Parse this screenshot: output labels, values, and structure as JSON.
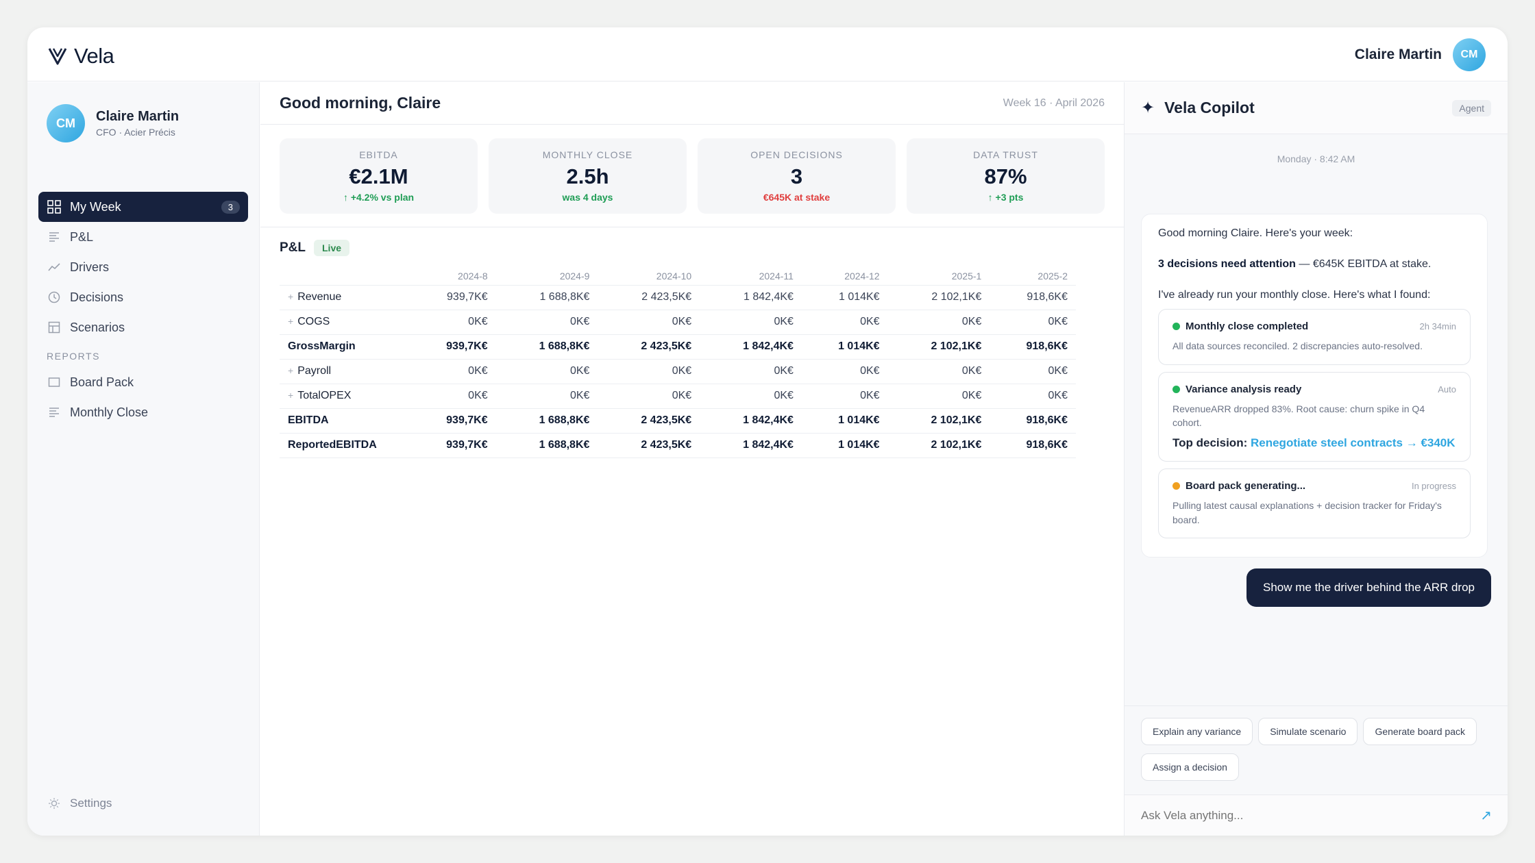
{
  "app": {
    "brand": "Vela",
    "user_name": "Claire Martin",
    "user_initials": "CM"
  },
  "sidebar": {
    "user_name": "Claire Martin",
    "user_role": "CFO · Acier Précis",
    "initials": "CM",
    "nav": [
      {
        "label": "My Week",
        "badge": "3",
        "icon": "grid-icon",
        "active": true
      },
      {
        "label": "P&L",
        "icon": "list-icon"
      },
      {
        "label": "Drivers",
        "icon": "trend-icon"
      },
      {
        "label": "Decisions",
        "icon": "clock-icon"
      },
      {
        "label": "Scenarios",
        "icon": "table-icon"
      }
    ],
    "reports_label": "REPORTS",
    "reports": [
      {
        "label": "Board Pack",
        "icon": "square-icon"
      },
      {
        "label": "Monthly Close",
        "icon": "list-icon"
      }
    ],
    "settings": "Settings"
  },
  "main": {
    "greeting": "Good morning, Claire",
    "week": "Week 16 · April 2026",
    "kpis": [
      {
        "label": "EBITDA",
        "value": "€2.1M",
        "sub": "↑ +4.2% vs plan",
        "tone": "green"
      },
      {
        "label": "MONTHLY CLOSE",
        "value": "2.5h",
        "sub": "was 4 days",
        "tone": "green"
      },
      {
        "label": "OPEN DECISIONS",
        "value": "3",
        "sub": "€645K at stake",
        "tone": "red"
      },
      {
        "label": "DATA TRUST",
        "value": "87%",
        "sub": "↑ +3 pts",
        "tone": "green"
      }
    ],
    "pl": {
      "title": "P&L",
      "live": "Live",
      "columns": [
        "2024-8",
        "2024-9",
        "2024-10",
        "2024-11",
        "2024-12",
        "2025-1",
        "2025-2"
      ],
      "rows": [
        {
          "label": "Revenue",
          "expand": true,
          "bold": false,
          "values": [
            "939,7K€",
            "1 688,8K€",
            "2 423,5K€",
            "1 842,4K€",
            "1 014K€",
            "2 102,1K€",
            "918,6K€"
          ]
        },
        {
          "label": "COGS",
          "expand": true,
          "bold": false,
          "values": [
            "0K€",
            "0K€",
            "0K€",
            "0K€",
            "0K€",
            "0K€",
            "0K€"
          ]
        },
        {
          "label": "GrossMargin",
          "expand": false,
          "bold": true,
          "values": [
            "939,7K€",
            "1 688,8K€",
            "2 423,5K€",
            "1 842,4K€",
            "1 014K€",
            "2 102,1K€",
            "918,6K€"
          ]
        },
        {
          "label": "Payroll",
          "expand": true,
          "bold": false,
          "values": [
            "0K€",
            "0K€",
            "0K€",
            "0K€",
            "0K€",
            "0K€",
            "0K€"
          ]
        },
        {
          "label": "TotalOPEX",
          "expand": true,
          "bold": false,
          "values": [
            "0K€",
            "0K€",
            "0K€",
            "0K€",
            "0K€",
            "0K€",
            "0K€"
          ]
        },
        {
          "label": "EBITDA",
          "expand": false,
          "bold": true,
          "values": [
            "939,7K€",
            "1 688,8K€",
            "2 423,5K€",
            "1 842,4K€",
            "1 014K€",
            "2 102,1K€",
            "918,6K€"
          ]
        },
        {
          "label": "ReportedEBITDA",
          "expand": false,
          "bold": true,
          "values": [
            "939,7K€",
            "1 688,8K€",
            "2 423,5K€",
            "1 842,4K€",
            "1 014K€",
            "2 102,1K€",
            "918,6K€"
          ]
        }
      ]
    }
  },
  "copilot": {
    "title": "Vela Copilot",
    "agent": "Agent",
    "timestamp": "Monday · 8:42 AM",
    "intro": "Good morning Claire. Here's your week:",
    "attention_bold": "3 decisions need attention",
    "attention_rest": " — €645K EBITDA at stake.",
    "found": "I've already run your monthly close. Here's what I found:",
    "cards": [
      {
        "title": "Monthly close completed",
        "meta": "2h 34min",
        "body": "All data sources reconciled. 2 discrepancies auto-resolved.",
        "dot": "#22b45a"
      },
      {
        "title": "Variance analysis ready",
        "meta": "Auto",
        "body": "RevenueARR dropped 83%. Root cause: churn spike in Q4 cohort.",
        "dot": "#22b45a",
        "decision_label": "Top decision:",
        "decision_link": "Renegotiate steel contracts → €340K"
      },
      {
        "title": "Board pack generating...",
        "meta": "In progress",
        "body": "Pulling latest causal explanations + decision tracker for Friday's board.",
        "dot": "#f0a020"
      }
    ],
    "user_message": "Show me the driver behind the ARR drop",
    "chips": [
      "Explain any variance",
      "Simulate scenario",
      "Generate board pack",
      "Assign a decision"
    ],
    "input_placeholder": "Ask Vela anything..."
  }
}
